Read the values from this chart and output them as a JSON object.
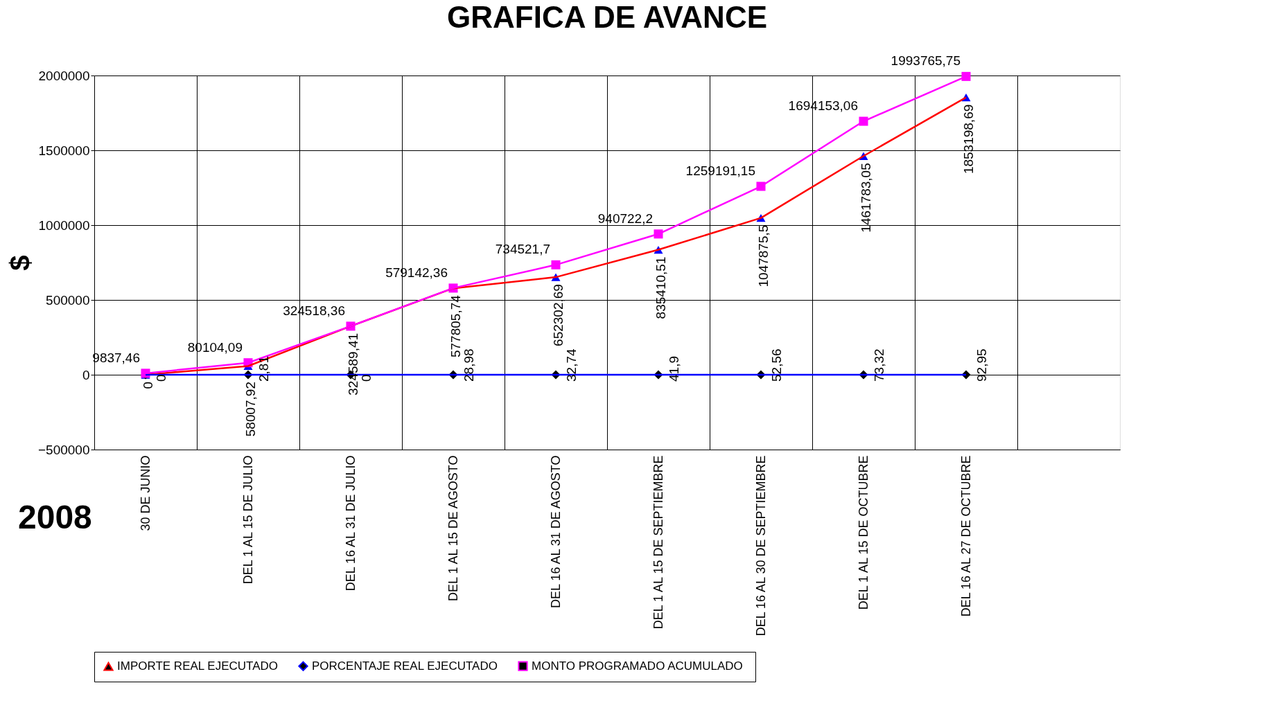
{
  "chart_data": {
    "type": "line",
    "title": "GRAFICA DE AVANCE",
    "ylabel": "$",
    "categories": [
      "30 DE JUNIO",
      "DEL 1 AL 15 DE JULIO",
      "DEL 16 AL 31 DE JULIO",
      "DEL 1 AL 15 DE AGOSTO",
      "DEL 16 AL 31 DE AGOSTO",
      "DEL 1 AL 15 DE SEPTIEMBRE",
      "DEL 16 AL 30 DE SEPTIEMBRE",
      "DEL 1 AL 15 DE OCTUBRE",
      "DEL 16 AL 27 DE OCTUBRE",
      null
    ],
    "series": [
      {
        "name": "IMPORTE REAL EJECUTADO",
        "color": "#ff0000",
        "marker": "triangle",
        "colors": [
          "#0000ff",
          "#0000ff",
          "#0000ff",
          "#0000ff",
          "#0000ff",
          "#0000ff",
          "#0000ff",
          "#0000ff",
          "#0000ff",
          null
        ],
        "values": [
          0,
          58007.92,
          324589.41,
          577805.74,
          652302.69,
          835410.51,
          1047875.5,
          1461783.05,
          1853198.69,
          null
        ],
        "value_labels": [
          "0",
          "58007,92",
          "324589,41",
          "577805,74",
          "652302,69",
          "835410,51",
          "1047875,5",
          "1461783,05",
          "1853198,69",
          null
        ]
      },
      {
        "name": "PORCENTAJE REAL EJECUTADO",
        "color": "#0000ff",
        "marker": "diamond",
        "colors": [
          "#000000",
          "#000000",
          "#000000",
          "#000000",
          "#000000",
          "#000000",
          "#000000",
          "#000000",
          "#000000",
          null
        ],
        "values": [
          0,
          2.81,
          0,
          28.98,
          32.74,
          41.9,
          52.56,
          73.32,
          92.95,
          null
        ],
        "value_labels": [
          "0",
          "2,81",
          "0",
          "28,98",
          "32,74",
          "41,9",
          "52,56",
          "73,32",
          "92,95",
          null
        ]
      },
      {
        "name": "MONTO PROGRAMADO  ACUMULADO",
        "color": "#ff00ff",
        "marker": "square",
        "colors": [
          "#ff00ff",
          "#ff00ff",
          "#ff00ff",
          "#ff00ff",
          "#ff00ff",
          "#ff00ff",
          "#ff00ff",
          "#ff00ff",
          "#ff00ff",
          null
        ],
        "values": [
          9837.46,
          80104.09,
          324518.36,
          579142.36,
          734521.7,
          940722.2,
          1259191.15,
          1694153.06,
          1993765.75,
          null
        ],
        "value_labels": [
          "9837,46",
          "80104,09",
          "324518,36",
          "579142,36",
          "734521,7",
          "940722,2",
          "1259191,15",
          "1694153,06",
          "1993765,75",
          null
        ]
      }
    ],
    "ylim": [
      -500000,
      2000000
    ],
    "yticks": [
      -500000,
      0,
      500000,
      1000000,
      1500000,
      2000000
    ],
    "grid": true,
    "legend": "bottom",
    "line_style": "solid",
    "annotations": [
      "2008"
    ]
  }
}
